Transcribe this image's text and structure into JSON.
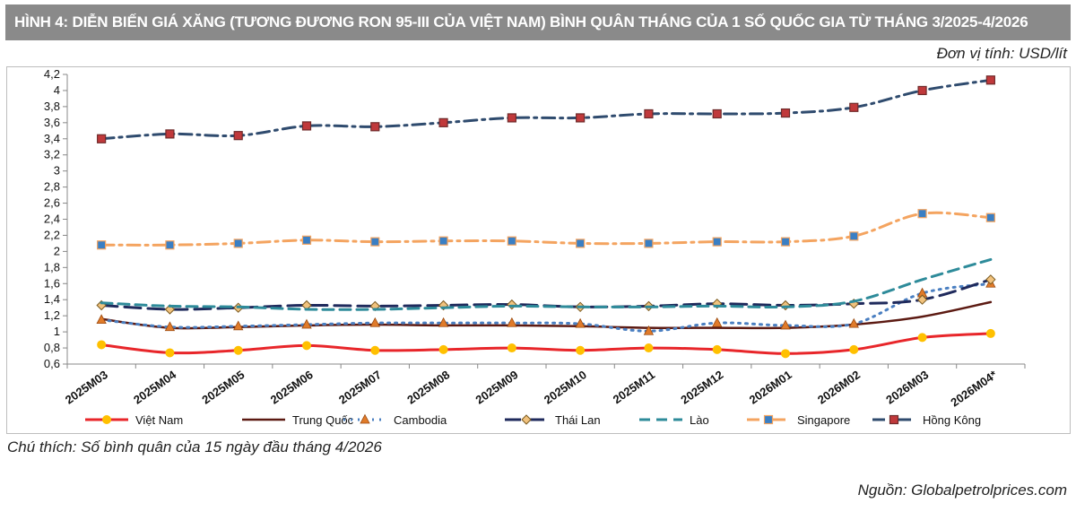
{
  "header": {
    "title": "HÌNH 4: DIỄN BIẾN GIÁ XĂNG (TƯƠNG ĐƯƠNG RON 95-III CỦA VIỆT NAM) BÌNH QUÂN THÁNG CỦA 1 SỐ QUỐC GIA TỪ THÁNG 3/2025-4/2026",
    "unit": "Đơn vị tính: USD/lít"
  },
  "footer": {
    "note": "Chú thích: Số bình quân của 15 ngày đầu tháng 4/2026",
    "source": "Nguồn: Globalpetrolprices.com"
  },
  "chart_data": {
    "type": "line",
    "categories": [
      "2025M03",
      "2025M04",
      "2025M05",
      "2025M06",
      "2025M07",
      "2025M08",
      "2025M09",
      "2025M10",
      "2025M11",
      "2025M12",
      "2026M01",
      "2026M02",
      "2026M03",
      "2026M04*"
    ],
    "ylim": [
      0.6,
      4.2
    ],
    "yticks": [
      0.6,
      0.8,
      1,
      1.2,
      1.4,
      1.6,
      1.8,
      2,
      2.2,
      2.4,
      2.6,
      2.8,
      3,
      3.2,
      3.4,
      3.6,
      3.8,
      4,
      4.2
    ],
    "ytick_labels": [
      "0,6",
      "0,8",
      "1",
      "1,2",
      "1,4",
      "1,6",
      "1,8",
      "2",
      "2,2",
      "2,4",
      "2,6",
      "2,8",
      "3",
      "3,2",
      "3,4",
      "3,6",
      "3,8",
      "4",
      "4,2"
    ],
    "grid": false,
    "legend_position": "bottom",
    "series": [
      {
        "name": "Việt Nam",
        "color": "#e8262a",
        "dash": "solid",
        "width": 3,
        "marker": "circle",
        "marker_color": "#ffc000",
        "values": [
          0.84,
          0.74,
          0.77,
          0.83,
          0.77,
          0.78,
          0.8,
          0.77,
          0.8,
          0.78,
          0.73,
          0.78,
          0.93,
          0.98
        ]
      },
      {
        "name": "Trung Quốc",
        "color": "#5c1a12",
        "dash": "solid",
        "width": 2.5,
        "marker": "none",
        "marker_color": "",
        "values": [
          1.16,
          1.05,
          1.06,
          1.08,
          1.09,
          1.08,
          1.08,
          1.07,
          1.05,
          1.05,
          1.05,
          1.09,
          1.19,
          1.37
        ]
      },
      {
        "name": "Cambodia",
        "color": "#4a7fc1",
        "dash": "dot",
        "width": 3,
        "marker": "triangle",
        "marker_color": "#e07b2a",
        "values": [
          1.15,
          1.06,
          1.07,
          1.09,
          1.11,
          1.11,
          1.11,
          1.1,
          1.01,
          1.11,
          1.08,
          1.1,
          1.48,
          1.6
        ]
      },
      {
        "name": "Thái Lan",
        "color": "#1f2a5c",
        "dash": "longdash",
        "width": 3,
        "marker": "diamond",
        "marker_color": "#f1c27d",
        "values": [
          1.33,
          1.28,
          1.3,
          1.33,
          1.32,
          1.33,
          1.34,
          1.31,
          1.32,
          1.35,
          1.33,
          1.35,
          1.4,
          1.65
        ]
      },
      {
        "name": "Lào",
        "color": "#2e8b9a",
        "dash": "dash",
        "width": 3,
        "marker": "none",
        "marker_color": "",
        "values": [
          1.36,
          1.32,
          1.31,
          1.28,
          1.28,
          1.3,
          1.32,
          1.31,
          1.31,
          1.32,
          1.31,
          1.38,
          1.65,
          1.9
        ]
      },
      {
        "name": "Singapore",
        "color": "#f4a460",
        "dash": "dashdot",
        "width": 3,
        "marker": "square",
        "marker_color": "#3a7fc4",
        "values": [
          2.08,
          2.08,
          2.1,
          2.14,
          2.12,
          2.13,
          2.13,
          2.1,
          2.1,
          2.12,
          2.12,
          2.19,
          2.47,
          2.42
        ]
      },
      {
        "name": "Hồng Kông",
        "color": "#2f4b6e",
        "dash": "dashdot",
        "width": 3,
        "marker": "square",
        "marker_color": "#c0393b",
        "values": [
          3.4,
          3.46,
          3.44,
          3.56,
          3.55,
          3.6,
          3.66,
          3.66,
          3.71,
          3.71,
          3.72,
          3.79,
          4.0,
          4.13
        ]
      }
    ]
  }
}
